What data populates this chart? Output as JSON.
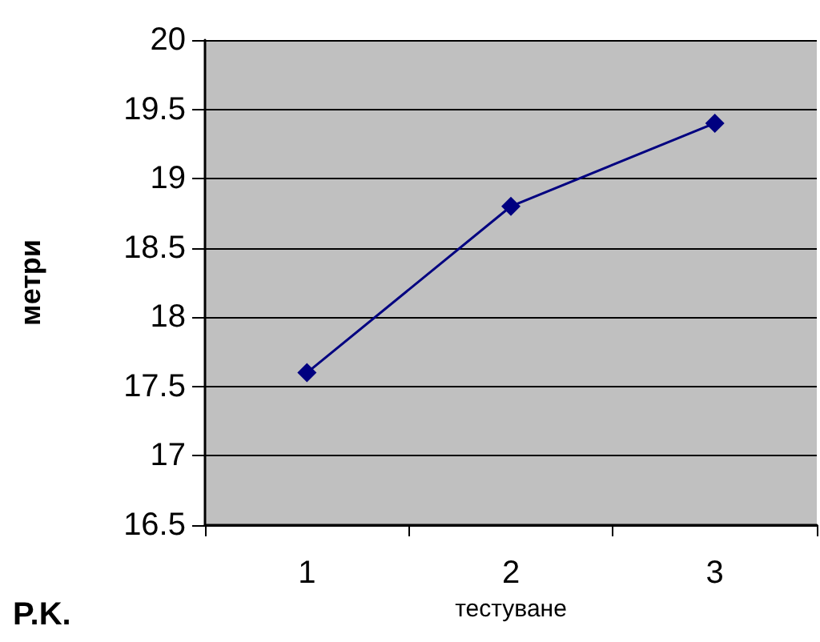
{
  "chart_data": {
    "type": "line",
    "xlabel": "тестуване",
    "ylabel": "метри",
    "annotations": [
      "P.K."
    ],
    "categories": [
      "1",
      "2",
      "3"
    ],
    "series": [
      {
        "color": "#000080",
        "values": [
          17.6,
          18.8,
          19.4
        ]
      }
    ],
    "ylim": [
      16.5,
      20
    ],
    "yticks": [
      16.5,
      17,
      17.5,
      18,
      18.5,
      19,
      19.5,
      20
    ],
    "grid": "y",
    "marker": "diamond",
    "line_style": "solid"
  }
}
